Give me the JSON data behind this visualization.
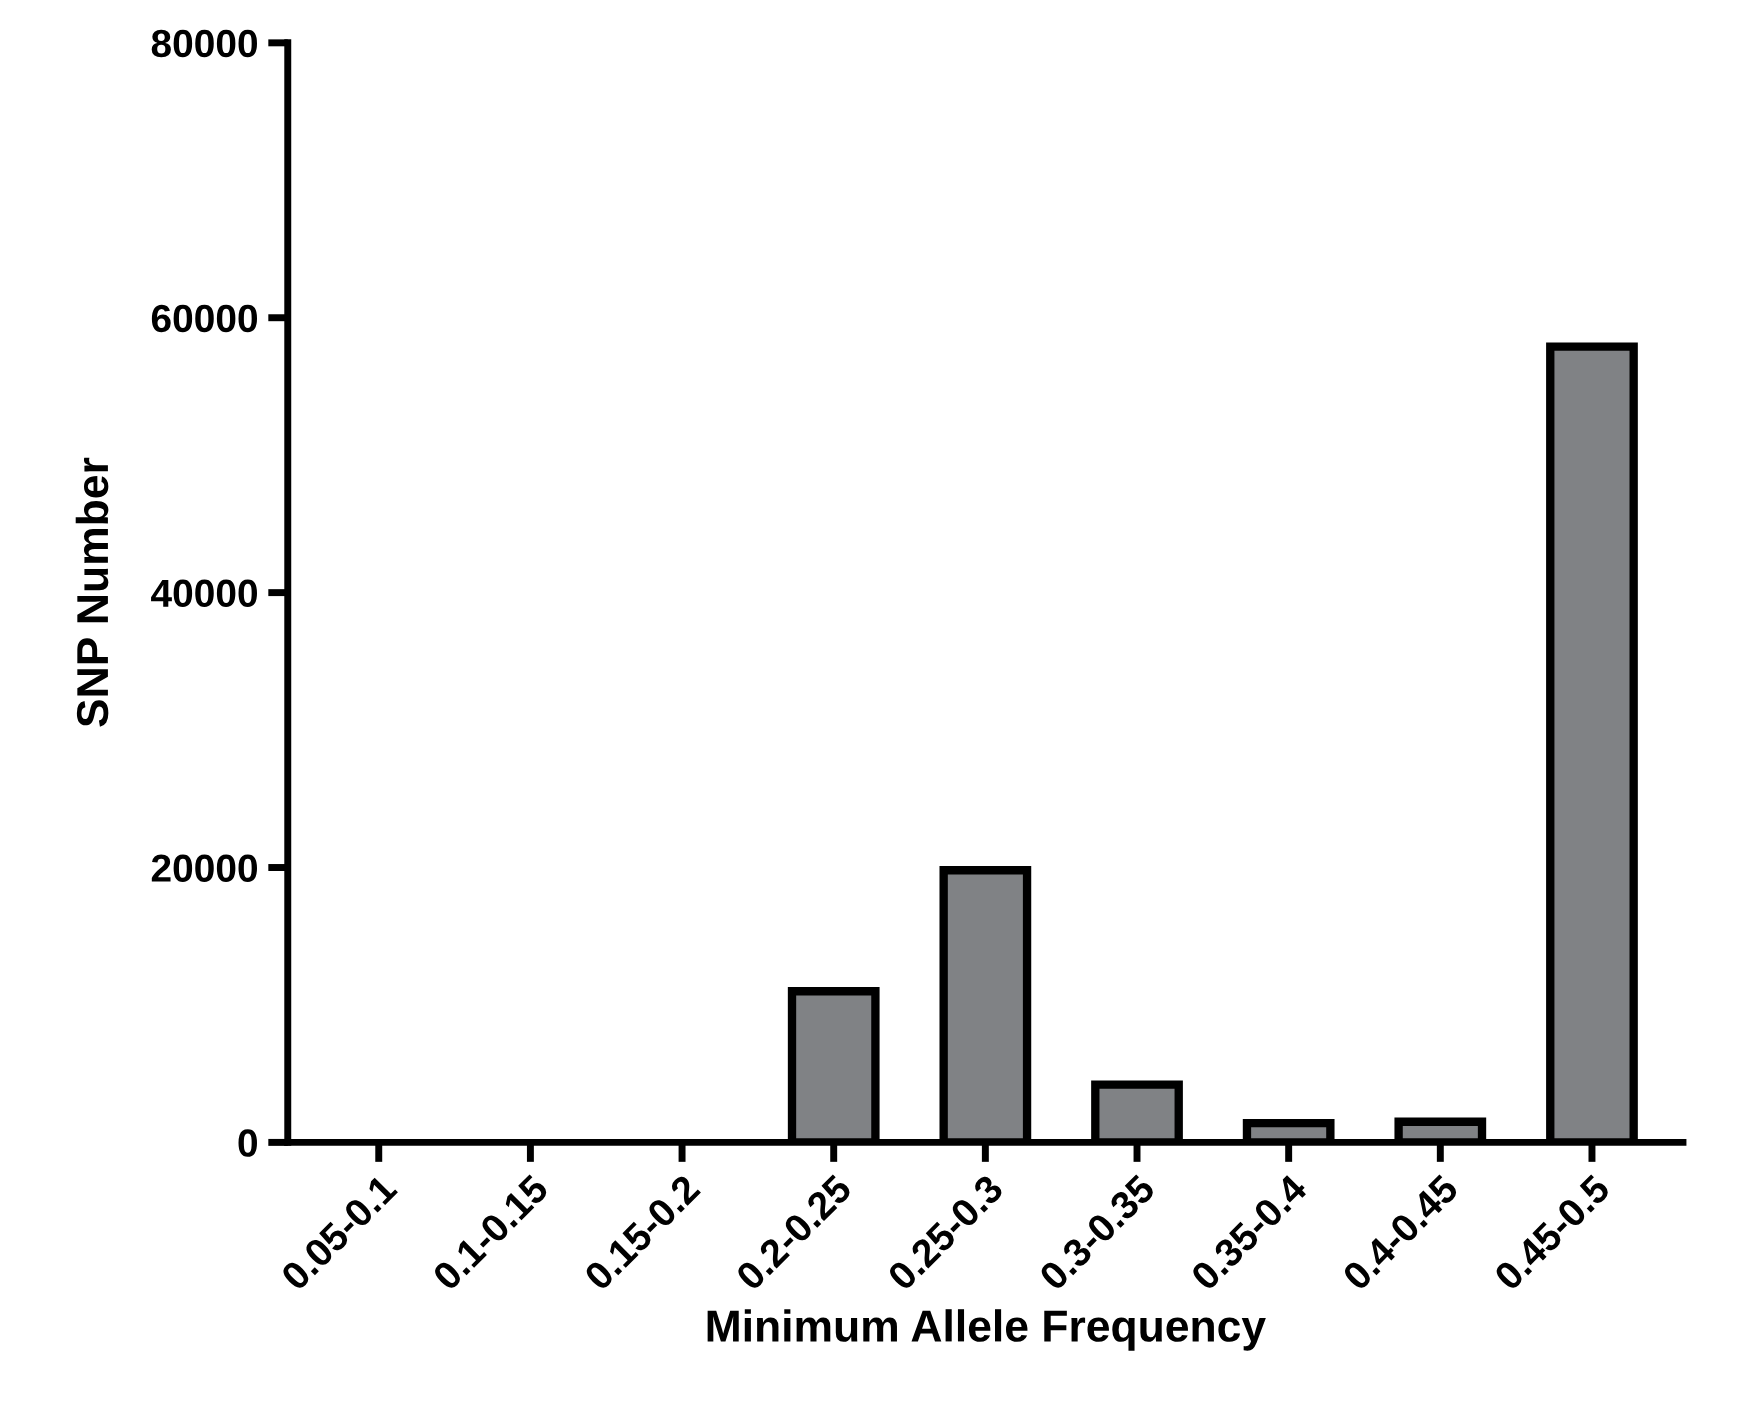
{
  "chart_data": {
    "type": "bar",
    "xlabel": "Minimum Allele Frequency",
    "ylabel": "SNP Number",
    "categories": [
      "0.05-0.1",
      "0.1-0.15",
      "0.15-0.2",
      "0.2-0.25",
      "0.25-0.3",
      "0.3-0.35",
      "0.35-0.4",
      "0.4-0.45",
      "0.45-0.5"
    ],
    "values": [
      0,
      0,
      0,
      11000,
      19800,
      4200,
      1400,
      1500,
      57900
    ],
    "color": "#808285",
    "ylim": [
      0,
      80000
    ],
    "yticks": [
      0,
      20000,
      40000,
      60000,
      80000
    ],
    "grid": false,
    "legend": false
  }
}
